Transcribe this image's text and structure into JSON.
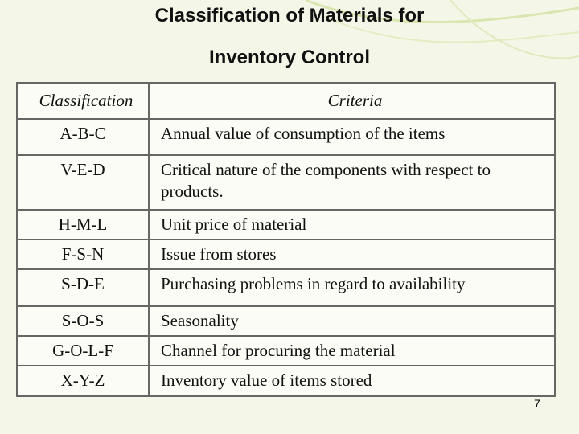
{
  "header": {
    "title": [
      "Classification of Materials for",
      "Inventory Control"
    ]
  },
  "table": {
    "columns": [
      "Classification",
      "Criteria"
    ],
    "rows": [
      [
        "A-B-C",
        "Annual value of consumption of the items"
      ],
      [
        "V-E-D",
        "Critical nature of the components with respect to products."
      ],
      [
        "H-M-L",
        "Unit price of material"
      ],
      [
        "F-S-N",
        "Issue from stores"
      ],
      [
        "S-D-E",
        "Purchasing problems in regard to availability"
      ],
      [
        "S-O-S",
        "Seasonality"
      ],
      [
        "G-O-L-F",
        "Channel for procuring the material"
      ],
      [
        "X-Y-Z",
        "Inventory value of items stored"
      ]
    ]
  },
  "page_number": "7"
}
